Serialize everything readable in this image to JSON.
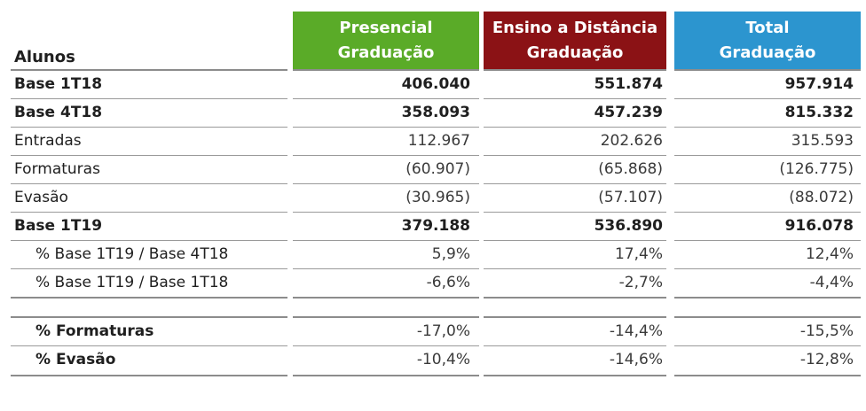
{
  "headers": {
    "row_label": "Alunos",
    "presencial": [
      "Presencial",
      "Graduação"
    ],
    "ead": [
      "Ensino a Distância",
      "Graduação"
    ],
    "total": [
      "Total",
      "Graduação"
    ]
  },
  "rows": [
    {
      "label": "Base 1T18",
      "presencial": "406.040",
      "ead": "551.874",
      "total": "957.914"
    },
    {
      "label": "Base 4T18",
      "presencial": "358.093",
      "ead": "457.239",
      "total": "815.332"
    },
    {
      "label": "Entradas",
      "presencial": "112.967",
      "ead": "202.626",
      "total": "315.593"
    },
    {
      "label": "Formaturas",
      "presencial": "(60.907)",
      "ead": "(65.868)",
      "total": "(126.775)"
    },
    {
      "label": "Evasão",
      "presencial": "(30.965)",
      "ead": "(57.107)",
      "total": "(88.072)"
    },
    {
      "label": "Base 1T19",
      "presencial": "379.188",
      "ead": "536.890",
      "total": "916.078"
    },
    {
      "label": "% Base 1T19 / Base 4T18",
      "presencial": "5,9%",
      "ead": "17,4%",
      "total": "12,4%"
    },
    {
      "label": "% Base 1T19 / Base 1T18",
      "presencial": "-6,6%",
      "ead": "-2,7%",
      "total": "-4,4%"
    },
    {
      "label": "% Formaturas",
      "presencial": "-17,0%",
      "ead": "-14,4%",
      "total": "-15,5%"
    },
    {
      "label": "% Evasão",
      "presencial": "-10,4%",
      "ead": "-14,6%",
      "total": "-12,8%"
    }
  ],
  "colors": {
    "presencial": "#5aab28",
    "ead": "#8b1215",
    "total": "#2c95cf"
  }
}
